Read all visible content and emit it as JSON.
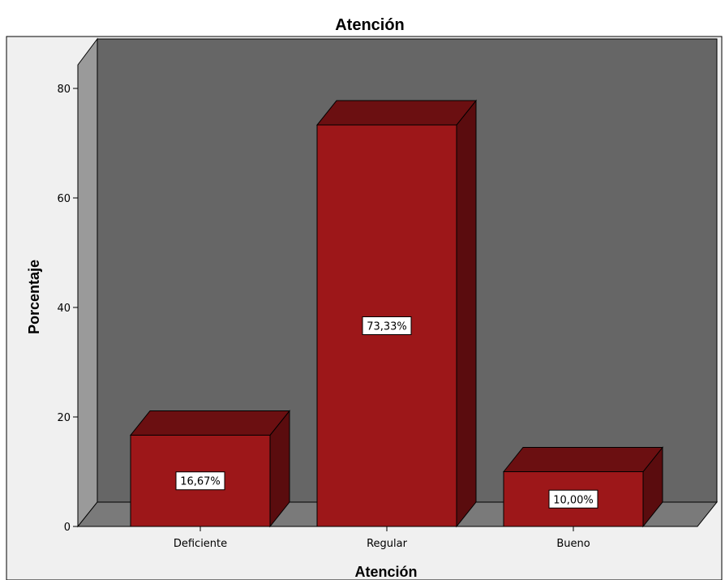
{
  "chart_data": {
    "type": "bar",
    "title": "Atención",
    "xlabel": "Atención",
    "ylabel": "Porcentaje",
    "categories": [
      "Deficiente",
      "Regular",
      "Bueno"
    ],
    "values": [
      16.67,
      73.33,
      10.0
    ],
    "data_labels": [
      "16,67%",
      "73,33%",
      "10,00%"
    ],
    "ylim": [
      0,
      85
    ],
    "yticks": [
      0,
      20,
      40,
      60,
      80
    ],
    "grid": false,
    "legend": "none",
    "style": "3d",
    "colors": {
      "bar_front": "#9d1719",
      "bar_top": "#6b0f11",
      "bar_side": "#5a0c0e",
      "back_wall": "#666666",
      "floor": "#7a7a7a",
      "side_wall": "#9a9a9a",
      "frame_bg": "#f0f0f0"
    }
  }
}
